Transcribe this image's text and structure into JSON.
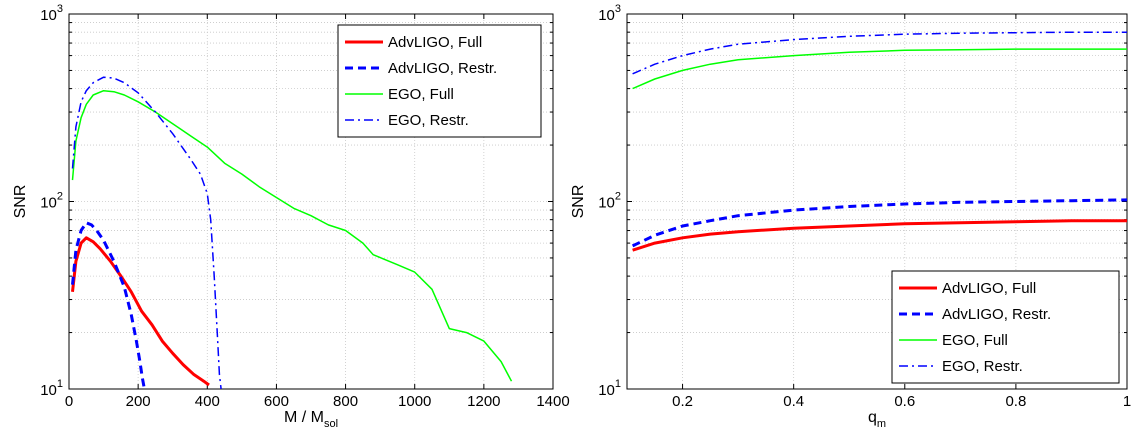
{
  "chart_data": [
    {
      "type": "line",
      "xlabel": "M / M",
      "xlabel_sub": "sol",
      "ylabel": "SNR",
      "yscale": "log",
      "xlim": [
        0,
        1400
      ],
      "ylim": [
        10,
        1000
      ],
      "xticks": [
        "0",
        "200",
        "400",
        "600",
        "800",
        "1000",
        "1200",
        "1400"
      ],
      "yticks": [
        {
          "base": "10",
          "exp": "1"
        },
        {
          "base": "10",
          "exp": "2"
        },
        {
          "base": "10",
          "exp": "3"
        }
      ],
      "grid": true,
      "legend_position": "top-right",
      "series": [
        {
          "name": "AdvLIGO, Full",
          "color": "#ff0000",
          "style": "solid",
          "width": 3,
          "x": [
            10,
            20,
            35,
            50,
            70,
            90,
            120,
            150,
            180,
            210,
            240,
            270,
            300,
            330,
            360,
            390,
            405
          ],
          "y": [
            33,
            48,
            60,
            64,
            61,
            56,
            48,
            40,
            33,
            26,
            22,
            18,
            15.5,
            13.5,
            12,
            11,
            10.5
          ]
        },
        {
          "name": "AdvLIGO, Restr.",
          "color": "#0000ff",
          "style": "dashed",
          "width": 3,
          "x": [
            10,
            20,
            35,
            50,
            65,
            80,
            100,
            130,
            160,
            180,
            195,
            205,
            212,
            218
          ],
          "y": [
            36,
            55,
            70,
            77,
            75,
            70,
            62,
            48,
            35,
            25,
            18,
            14,
            11.5,
            10
          ]
        },
        {
          "name": "EGO, Full",
          "color": "#00ff00",
          "style": "solid",
          "width": 1.5,
          "x": [
            10,
            20,
            35,
            50,
            70,
            100,
            130,
            160,
            200,
            250,
            300,
            350,
            400,
            450,
            500,
            550,
            600,
            650,
            700,
            750,
            800,
            850,
            880,
            950,
            1000,
            1050,
            1100,
            1150,
            1200,
            1250,
            1280
          ],
          "y": [
            130,
            210,
            280,
            330,
            370,
            390,
            385,
            370,
            340,
            300,
            260,
            225,
            195,
            160,
            140,
            120,
            105,
            92,
            84,
            75,
            70,
            60,
            52,
            46,
            42,
            34,
            21,
            20,
            18,
            14,
            11
          ]
        },
        {
          "name": "EGO, Restr.",
          "color": "#0000ff",
          "style": "dashdot",
          "width": 1.5,
          "x": [
            10,
            20,
            35,
            50,
            70,
            100,
            130,
            160,
            200,
            250,
            300,
            350,
            380,
            400,
            410,
            420,
            430,
            435,
            440
          ],
          "y": [
            150,
            250,
            340,
            390,
            430,
            460,
            455,
            430,
            380,
            300,
            230,
            170,
            140,
            110,
            80,
            40,
            18,
            12,
            10
          ]
        }
      ]
    },
    {
      "type": "line",
      "xlabel": "q",
      "xlabel_sub": "m",
      "ylabel": "SNR",
      "yscale": "log",
      "xlim": [
        0.1,
        1
      ],
      "ylim": [
        10,
        1000
      ],
      "xticks": [
        "0.2",
        "0.4",
        "0.6",
        "0.8",
        "1"
      ],
      "yticks": [
        {
          "base": "10",
          "exp": "1"
        },
        {
          "base": "10",
          "exp": "2"
        },
        {
          "base": "10",
          "exp": "3"
        }
      ],
      "grid": true,
      "legend_position": "bottom-right",
      "series": [
        {
          "name": "AdvLIGO, Full",
          "color": "#ff0000",
          "style": "solid",
          "width": 3,
          "x": [
            0.11,
            0.15,
            0.2,
            0.25,
            0.3,
            0.4,
            0.5,
            0.6,
            0.7,
            0.8,
            0.9,
            1.0
          ],
          "y": [
            55,
            60,
            64,
            67,
            69,
            72,
            74,
            76,
            77,
            78,
            79,
            79
          ]
        },
        {
          "name": "AdvLIGO, Restr.",
          "color": "#0000ff",
          "style": "dashed",
          "width": 3,
          "x": [
            0.11,
            0.15,
            0.2,
            0.25,
            0.3,
            0.4,
            0.5,
            0.6,
            0.7,
            0.8,
            0.9,
            1.0
          ],
          "y": [
            58,
            66,
            74,
            79,
            84,
            90,
            94,
            97,
            99,
            100,
            101,
            102
          ]
        },
        {
          "name": "EGO, Full",
          "color": "#00ff00",
          "style": "solid",
          "width": 1.5,
          "x": [
            0.11,
            0.15,
            0.2,
            0.25,
            0.3,
            0.4,
            0.5,
            0.6,
            0.7,
            0.8,
            0.9,
            1.0
          ],
          "y": [
            400,
            450,
            500,
            540,
            570,
            600,
            625,
            640,
            645,
            650,
            650,
            650
          ]
        },
        {
          "name": "EGO, Restr.",
          "color": "#0000ff",
          "style": "dashdot",
          "width": 1.5,
          "x": [
            0.11,
            0.15,
            0.2,
            0.25,
            0.3,
            0.4,
            0.5,
            0.6,
            0.7,
            0.8,
            0.9,
            1.0
          ],
          "y": [
            480,
            540,
            600,
            650,
            690,
            730,
            760,
            780,
            790,
            795,
            800,
            800
          ]
        }
      ]
    }
  ]
}
